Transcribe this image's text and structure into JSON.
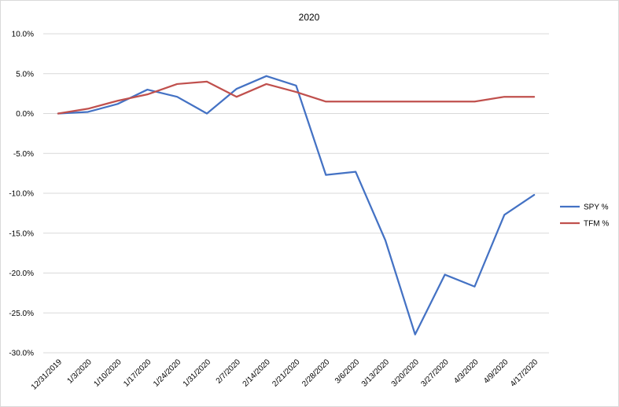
{
  "chart_data": {
    "type": "line",
    "title": "2020",
    "xlabel": "",
    "ylabel": "",
    "categories": [
      "12/31/2019",
      "1/3/2020",
      "1/10/2020",
      "1/17/2020",
      "1/24/2020",
      "1/31/2020",
      "2/7/2020",
      "2/14/2020",
      "2/21/2020",
      "2/28/2020",
      "3/6/2020",
      "3/13/2020",
      "3/20/2020",
      "3/27/2020",
      "4/3/2020",
      "4/9/2020",
      "4/17/2020"
    ],
    "ylim": [
      -30,
      10
    ],
    "y_ticks": [
      10,
      5,
      0,
      -5,
      -10,
      -15,
      -20,
      -25,
      -30
    ],
    "y_tick_labels": [
      "10.0%",
      "5.0%",
      "0.0%",
      "-5.0%",
      "-10.0%",
      "-15.0%",
      "-20.0%",
      "-25.0%",
      "-30.0%"
    ],
    "grid": true,
    "legend_position": "right",
    "series": [
      {
        "name": "SPY %",
        "color": "#4472C4",
        "values": [
          0,
          0.2,
          1.2,
          3.0,
          2.1,
          0,
          3.1,
          4.7,
          3.5,
          -7.7,
          -7.3,
          -15.9,
          -27.7,
          -20.2,
          -21.7,
          -12.7,
          -10.2
        ]
      },
      {
        "name": "TFM %",
        "color": "#C0504D",
        "values": [
          0,
          0.6,
          1.6,
          2.4,
          3.7,
          4.0,
          2.1,
          3.7,
          2.7,
          1.5,
          1.5,
          1.5,
          1.5,
          1.5,
          1.5,
          2.1,
          2.1
        ]
      }
    ]
  }
}
